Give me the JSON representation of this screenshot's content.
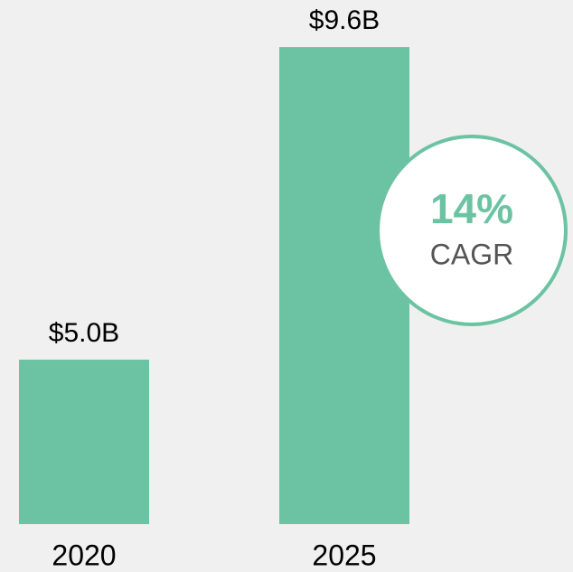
{
  "chart_data": {
    "type": "bar",
    "categories": [
      "2020",
      "2025"
    ],
    "values": [
      5.0,
      9.6
    ],
    "value_labels": [
      "$5.0B",
      "$9.6B"
    ],
    "color": "#6cc3a3",
    "ylim": [
      2.58,
      10.0
    ],
    "annotation": {
      "value_text": "14%",
      "label": "CAGR"
    }
  }
}
